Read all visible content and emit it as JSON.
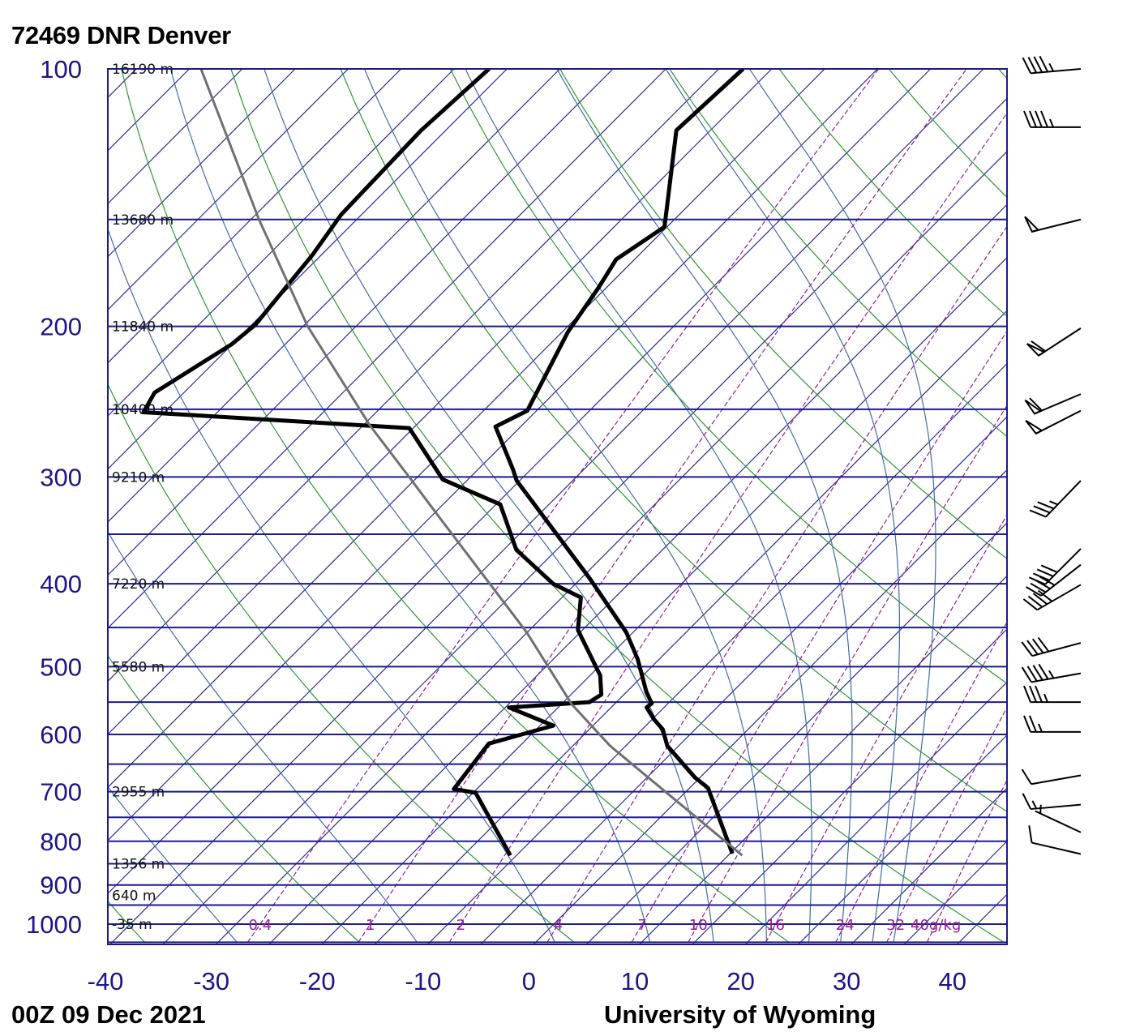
{
  "header": {
    "title": "72469 DNR Denver"
  },
  "footer": {
    "datetime": "00Z 09 Dec 2021",
    "credit": "University of Wyoming"
  },
  "chart_data": {
    "type": "line",
    "diagram": "skew-T log-P",
    "title": "72469 DNR Denver",
    "subtitle": "00Z 09 Dec 2021",
    "xlim": [
      -40,
      45
    ],
    "ylim": [
      1050,
      100
    ],
    "x_ticks": [
      -40,
      -30,
      -20,
      -10,
      0,
      10,
      20,
      30,
      40
    ],
    "y_ticks": [
      100,
      200,
      300,
      400,
      500,
      600,
      700,
      800,
      900,
      1000
    ],
    "isobars": [
      100,
      150,
      200,
      250,
      300,
      350,
      400,
      450,
      500,
      550,
      600,
      650,
      700,
      750,
      800,
      850,
      900,
      950,
      1000,
      1050
    ],
    "isotherm_interval": 5,
    "height_labels": [
      {
        "p": 100,
        "label": "16190 m"
      },
      {
        "p": 150,
        "label": "13680 m"
      },
      {
        "p": 200,
        "label": "11840 m"
      },
      {
        "p": 250,
        "label": "10400 m"
      },
      {
        "p": 300,
        "label": "9210 m"
      },
      {
        "p": 400,
        "label": "7220 m"
      },
      {
        "p": 500,
        "label": "5580 m"
      },
      {
        "p": 700,
        "label": "2955 m"
      },
      {
        "p": 850,
        "label": "1356 m"
      },
      {
        "p": 925,
        "label": "640 m"
      },
      {
        "p": 1000,
        "label": "-35 m"
      }
    ],
    "dry_adiabats_thetaC": [
      -40,
      -20,
      0,
      20,
      40,
      60,
      80,
      100,
      120,
      140,
      160,
      180
    ],
    "moist_adiabats_T1050": [
      -28,
      -11,
      2,
      11,
      17,
      22,
      26,
      29,
      32,
      34
    ],
    "mixing_ratios": [
      {
        "w": 0.4,
        "label": "0.4"
      },
      {
        "w": 1,
        "label": "1"
      },
      {
        "w": 2,
        "label": "2"
      },
      {
        "w": 4,
        "label": "4"
      },
      {
        "w": 7,
        "label": "7"
      },
      {
        "w": 10,
        "label": "10"
      },
      {
        "w": 16,
        "label": "16"
      },
      {
        "w": 24,
        "label": "24"
      },
      {
        "w": 32,
        "label": "32"
      },
      {
        "w": 40,
        "label": "40g/kg"
      }
    ],
    "series": [
      {
        "name": "temperature",
        "color": "#000000",
        "points": [
          [
            827,
            10.4
          ],
          [
            693,
            1.9
          ],
          [
            674,
            -0.3
          ],
          [
            619,
            -5.9
          ],
          [
            592,
            -7.9
          ],
          [
            576,
            -9.7
          ],
          [
            558,
            -11.5
          ],
          [
            552,
            -11.4
          ],
          [
            535,
            -13.0
          ],
          [
            490,
            -16.9
          ],
          [
            456,
            -20.5
          ],
          [
            394,
            -29.1
          ],
          [
            303,
            -45.2
          ],
          [
            294,
            -46.6
          ],
          [
            262,
            -52.3
          ],
          [
            251,
            -50.8
          ],
          [
            203,
            -54.4
          ],
          [
            180,
            -55.7
          ],
          [
            167,
            -56.7
          ],
          [
            153,
            -55.2
          ],
          [
            118,
            -63.2
          ],
          [
            100,
            -62.7
          ]
        ]
      },
      {
        "name": "dewpoint",
        "color": "#000000",
        "points": [
          [
            831,
            -10.4
          ],
          [
            702,
            -19.6
          ],
          [
            695,
            -22.0
          ],
          [
            615,
            -23.0
          ],
          [
            586,
            -18.6
          ],
          [
            558,
            -24.5
          ],
          [
            550,
            -17.4
          ],
          [
            539,
            -17.0
          ],
          [
            512,
            -18.9
          ],
          [
            453,
            -25.3
          ],
          [
            415,
            -28.1
          ],
          [
            400,
            -32.0
          ],
          [
            365,
            -38.7
          ],
          [
            323,
            -44.5
          ],
          [
            302,
            -52.3
          ],
          [
            263,
            -60.3
          ],
          [
            252,
            -86.9
          ],
          [
            239,
            -87.7
          ],
          [
            210,
            -85.0
          ],
          [
            199,
            -84.6
          ],
          [
            165,
            -85.8
          ],
          [
            148,
            -86.9
          ],
          [
            118,
            -87.3
          ],
          [
            100,
            -86.7
          ]
        ]
      },
      {
        "name": "parcel",
        "color": "#707070",
        "points": [
          [
            831,
            11.5
          ],
          [
            619,
            -11.3
          ],
          [
            553,
            -18.9
          ],
          [
            456,
            -29.9
          ],
          [
            333,
            -49.3
          ],
          [
            300,
            -55.7
          ],
          [
            261,
            -64.3
          ],
          [
            200,
            -79.5
          ],
          [
            150,
            -94.2
          ],
          [
            100,
            -113.9
          ]
        ]
      }
    ],
    "wind_barbs": [
      {
        "p": 100,
        "dir": 265,
        "spd": 45
      },
      {
        "p": 117,
        "dir": 270,
        "spd": 45
      },
      {
        "p": 150,
        "dir": 256,
        "spd": 50
      },
      {
        "p": 201,
        "dir": 237,
        "spd": 60
      },
      {
        "p": 240,
        "dir": 247,
        "spd": 60
      },
      {
        "p": 251,
        "dir": 243,
        "spd": 50
      },
      {
        "p": 303,
        "dir": 224,
        "spd": 35
      },
      {
        "p": 364,
        "dir": 225,
        "spd": 40
      },
      {
        "p": 380,
        "dir": 232,
        "spd": 40
      },
      {
        "p": 401,
        "dir": 240,
        "spd": 40
      },
      {
        "p": 469,
        "dir": 255,
        "spd": 40
      },
      {
        "p": 509,
        "dir": 260,
        "spd": 45
      },
      {
        "p": 550,
        "dir": 270,
        "spd": 35
      },
      {
        "p": 596,
        "dir": 270,
        "spd": 25
      },
      {
        "p": 670,
        "dir": 260,
        "spd": 10
      },
      {
        "p": 725,
        "dir": 265,
        "spd": 15
      },
      {
        "p": 781,
        "dir": 295,
        "spd": 5
      },
      {
        "p": 828,
        "dir": 283,
        "spd": 10
      }
    ]
  }
}
